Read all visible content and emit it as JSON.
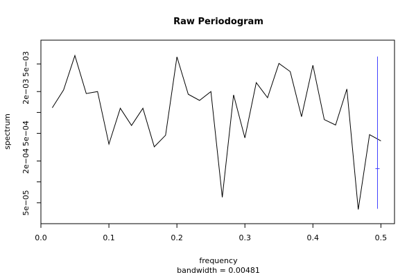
{
  "chart_data": {
    "type": "line",
    "title": "Raw Periodogram",
    "xlabel": "frequency",
    "sublabel": "bandwidth = 0.00481",
    "ylabel": "spectrum",
    "y_scale": "log",
    "xlim": [
      0.0,
      0.52
    ],
    "ylim": [
      2.5e-05,
      0.011
    ],
    "x_ticks": [
      {
        "value": 0.0,
        "label": "0.0"
      },
      {
        "value": 0.1,
        "label": "0.1"
      },
      {
        "value": 0.2,
        "label": "0.2"
      },
      {
        "value": 0.3,
        "label": "0.3"
      },
      {
        "value": 0.4,
        "label": "0.4"
      },
      {
        "value": 0.5,
        "label": "0.5"
      }
    ],
    "y_ticks": [
      {
        "value": 5e-05,
        "label": "5e−05"
      },
      {
        "value": 0.0001,
        "label": ""
      },
      {
        "value": 0.0002,
        "label": "2e−04"
      },
      {
        "value": 0.0005,
        "label": "5e−04"
      },
      {
        "value": 0.001,
        "label": ""
      },
      {
        "value": 0.002,
        "label": "2e−03"
      },
      {
        "value": 0.005,
        "label": "5e−03"
      }
    ],
    "series": [
      {
        "color": "#000000",
        "x": [
          0.0167,
          0.0333,
          0.05,
          0.0667,
          0.0833,
          0.1,
          0.1167,
          0.1333,
          0.15,
          0.1667,
          0.1833,
          0.2,
          0.2167,
          0.2333,
          0.25,
          0.2667,
          0.2833,
          0.3,
          0.3167,
          0.3333,
          0.35,
          0.3667,
          0.3833,
          0.4,
          0.4167,
          0.4333,
          0.45,
          0.4667,
          0.4833,
          0.5
        ],
        "y": [
          0.00117,
          0.00211,
          0.00661,
          0.00187,
          0.002,
          0.00035,
          0.00115,
          0.00065,
          0.00115,
          0.00032,
          0.00047,
          0.00633,
          0.00183,
          0.00149,
          0.002,
          6e-05,
          0.00179,
          0.00043,
          0.00269,
          0.00163,
          0.00508,
          0.00388,
          0.00087,
          0.00479,
          0.00079,
          0.00066,
          0.00218,
          4e-05,
          0.00048,
          0.00039
        ]
      }
    ],
    "ci_bar": {
      "color": "#4040ff",
      "x": 0.495,
      "lower": 4.1e-05,
      "center": 0.000155,
      "upper": 0.0064
    }
  }
}
